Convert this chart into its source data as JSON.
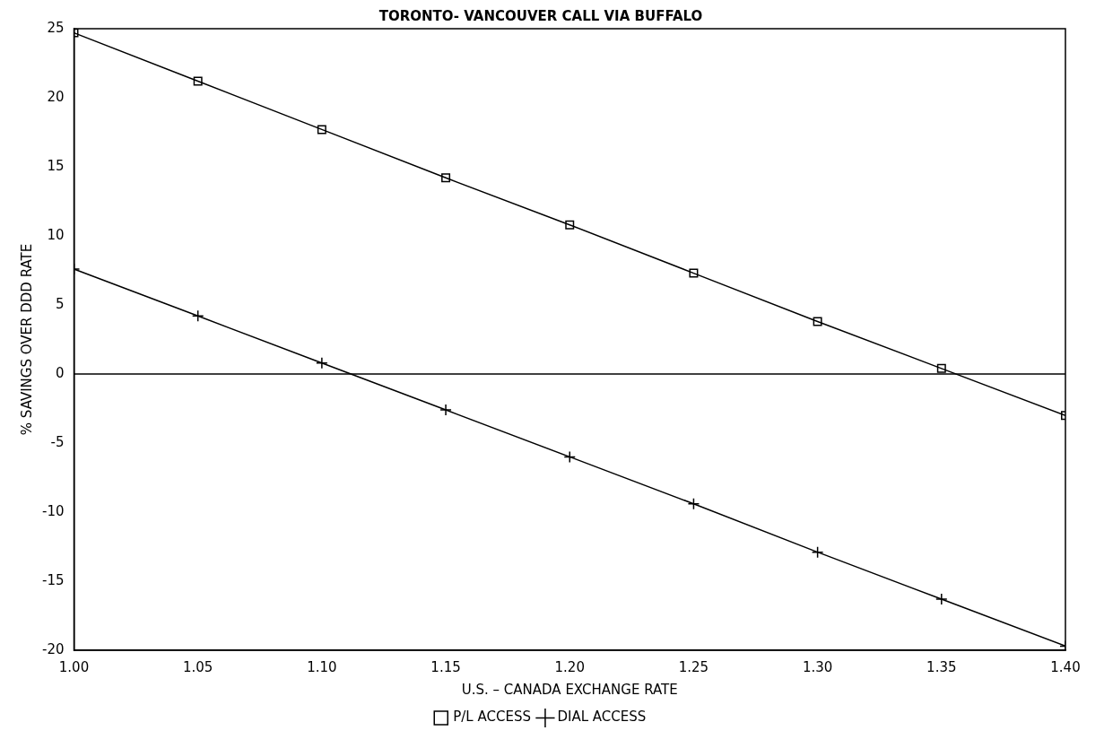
{
  "chart_data": {
    "type": "line",
    "title": "TORONTO- VANCOUVER CALL VIA BUFFALO",
    "xlabel": "U.S. – CANADA EXCHANGE RATE",
    "ylabel": "% SAVINGS OVER DDD RATE",
    "x": [
      1.0,
      1.05,
      1.1,
      1.15,
      1.2,
      1.25,
      1.3,
      1.35,
      1.4
    ],
    "series": [
      {
        "name": "P/L ACCESS",
        "color": "#000000",
        "marker": "square",
        "values": [
          24.7,
          21.2,
          17.7,
          14.2,
          10.8,
          7.3,
          3.8,
          0.4,
          -3.0
        ]
      },
      {
        "name": "DIAL ACCESS",
        "color": "#000000",
        "marker": "cross",
        "values": [
          7.6,
          4.2,
          0.8,
          -2.6,
          -6.0,
          -9.4,
          -12.9,
          -16.3,
          -19.7
        ]
      }
    ],
    "xlim": [
      1.0,
      1.4
    ],
    "xticks": [
      {
        "value": 1.0,
        "label": "1.00"
      },
      {
        "value": 1.05,
        "label": "1.05"
      },
      {
        "value": 1.1,
        "label": "1.10"
      },
      {
        "value": 1.15,
        "label": "1.15"
      },
      {
        "value": 1.2,
        "label": "1.20"
      },
      {
        "value": 1.25,
        "label": "1.25"
      },
      {
        "value": 1.3,
        "label": "1.30"
      },
      {
        "value": 1.35,
        "label": "1.35"
      },
      {
        "value": 1.4,
        "label": "1.40"
      }
    ],
    "ylim": [
      -20,
      25
    ],
    "yticks": [
      -20,
      -15,
      -10,
      -5,
      0,
      5,
      10,
      15,
      20,
      25
    ],
    "ref_lines": [
      {
        "axis": "y",
        "value": 0,
        "color": "#000000"
      }
    ],
    "grid": false,
    "legend": "bottom",
    "line_style": "solid"
  }
}
